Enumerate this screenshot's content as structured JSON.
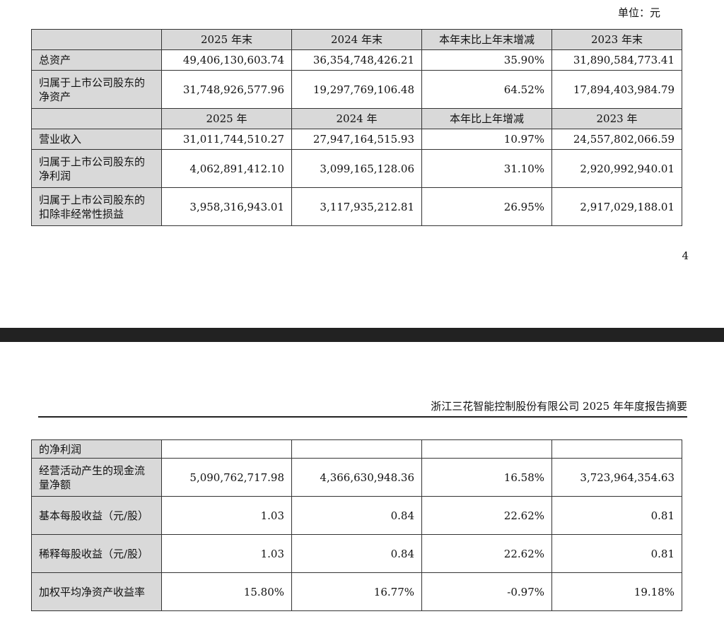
{
  "unit_label": "单位：元",
  "page_number": "4",
  "report_title": "浙江三花智能控制股份有限公司 2025 年年度报告摘要",
  "top_table": {
    "header1": [
      "2025 年末",
      "2024 年末",
      "本年末比上年末增减",
      "2023 年末"
    ],
    "rows_a": [
      {
        "label": "总资产",
        "values": [
          "49,406,130,603.74",
          "36,354,748,426.21",
          "35.90%",
          "31,890,584,773.41"
        ]
      },
      {
        "label": "归属于上市公司股东的净资产",
        "values": [
          "31,748,926,577.96",
          "19,297,769,106.48",
          "64.52%",
          "17,894,403,984.79"
        ]
      }
    ],
    "header2": [
      "2025 年",
      "2024 年",
      "本年比上年增减",
      "2023 年"
    ],
    "rows_b": [
      {
        "label": "营业收入",
        "values": [
          "31,011,744,510.27",
          "27,947,164,515.93",
          "10.97%",
          "24,557,802,066.59"
        ]
      },
      {
        "label": "归属于上市公司股东的净利润",
        "values": [
          "4,062,891,412.10",
          "3,099,165,128.06",
          "31.10%",
          "2,920,992,940.01"
        ]
      },
      {
        "label": "归属于上市公司股东的扣除非经常性损益",
        "values": [
          "3,958,316,943.01",
          "3,117,935,212.81",
          "26.95%",
          "2,917,029,188.01"
        ]
      }
    ]
  },
  "bottom_table": {
    "rows": [
      {
        "label": "的净利润",
        "values": [
          "",
          "",
          "",
          ""
        ]
      },
      {
        "label": "经营活动产生的现金流量净额",
        "values": [
          "5,090,762,717.98",
          "4,366,630,948.36",
          "16.58%",
          "3,723,964,354.63"
        ]
      },
      {
        "label": "基本每股收益（元/股）",
        "values": [
          "1.03",
          "0.84",
          "22.62%",
          "0.81"
        ]
      },
      {
        "label": "稀释每股收益（元/股）",
        "values": [
          "1.03",
          "0.84",
          "22.62%",
          "0.81"
        ]
      },
      {
        "label": "加权平均净资产收益率",
        "values": [
          "15.80%",
          "16.77%",
          "-0.97%",
          "19.18%"
        ]
      }
    ]
  }
}
